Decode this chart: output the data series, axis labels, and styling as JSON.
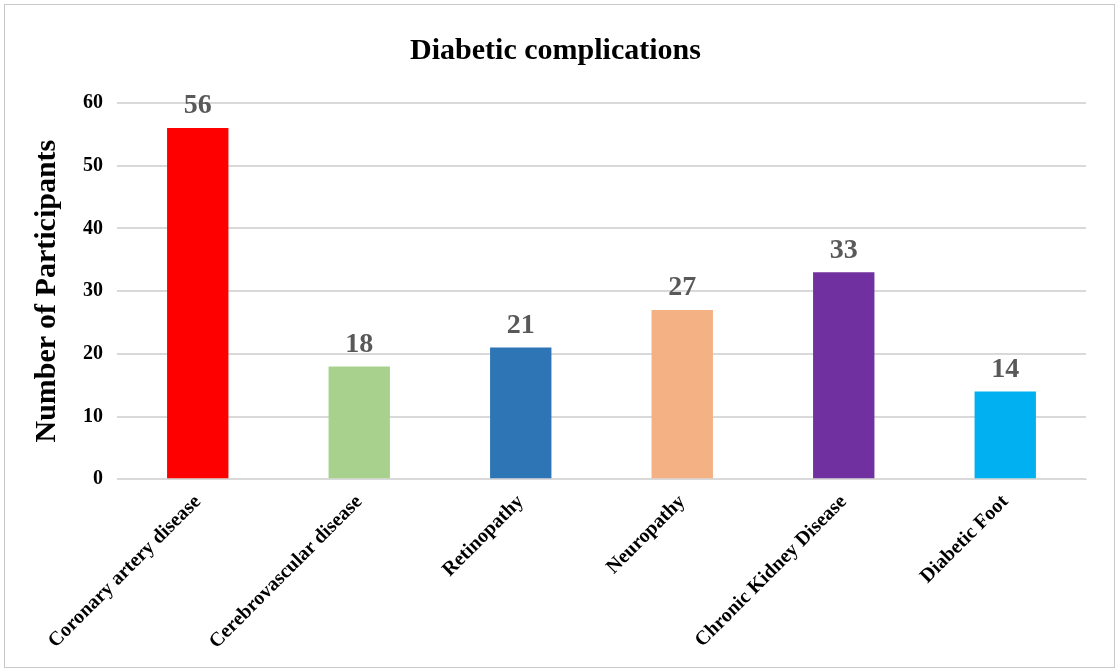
{
  "chart_data": {
    "type": "bar",
    "title": "Diabetic complications",
    "ylabel": "Number of Participants",
    "categories": [
      "Coronary artery disease",
      "Cerebrovascular disease",
      "Retinopathy",
      "Neuropathy",
      "Chronic Kidney Disease",
      "Diabetic Foot"
    ],
    "values": [
      56,
      18,
      21,
      27,
      33,
      14
    ],
    "colors": [
      "#ff0000",
      "#a9d18e",
      "#2e75b6",
      "#f4b183",
      "#7030a0",
      "#00b0f0"
    ],
    "ylim": [
      0,
      60
    ],
    "yticks": [
      0,
      10,
      20,
      30,
      40,
      50,
      60
    ],
    "grid": "y",
    "data_labels": true,
    "legend": false
  }
}
